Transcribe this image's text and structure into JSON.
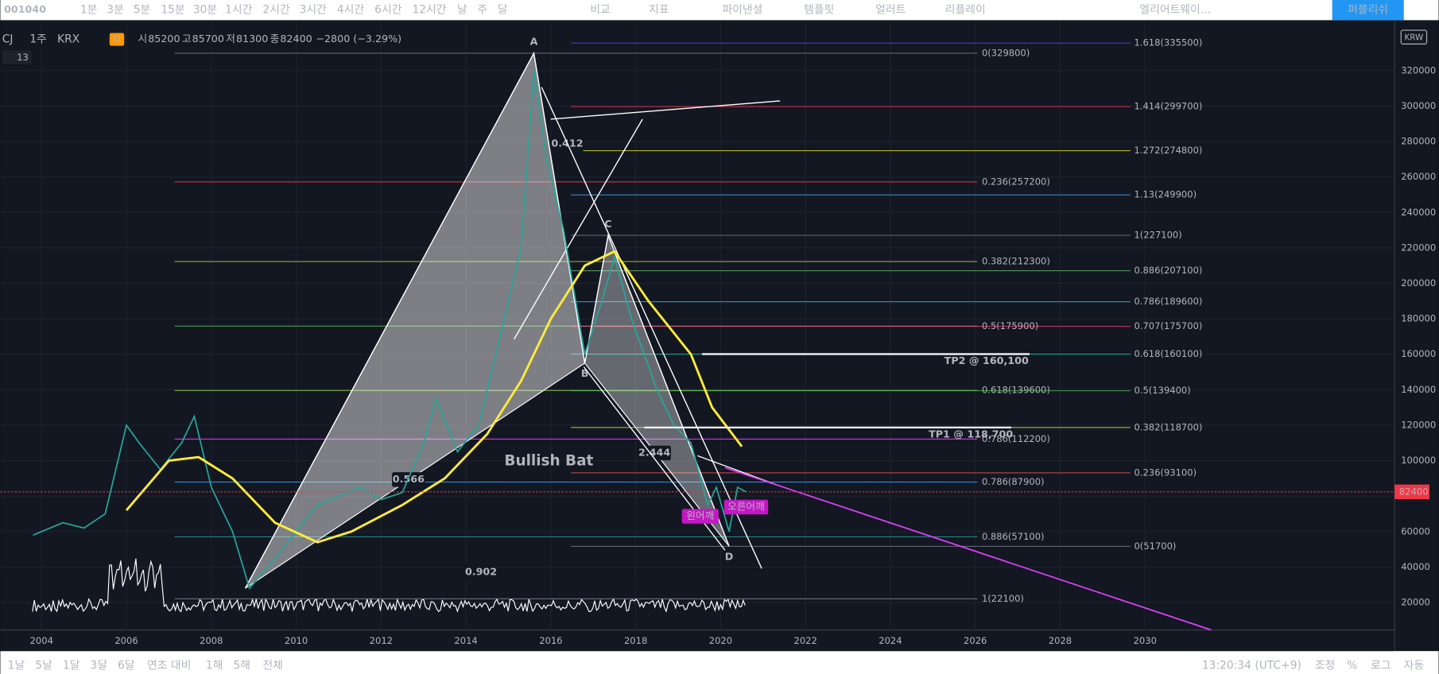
{
  "toolbar": {
    "symbol": "001040",
    "intervals": [
      "1분",
      "3분",
      "5분",
      "15분",
      "30분",
      "1시간",
      "2시간",
      "3시간",
      "4시간",
      "6시간",
      "12시간",
      "날",
      "주",
      "달"
    ],
    "active_interval": "주",
    "buttons": [
      "비교",
      "지표",
      "파이낸셜",
      "템플릿",
      "얼러트",
      "리플레이"
    ],
    "drawing_tool": "엘리어트웨이...",
    "publish": "퍼블리쉬"
  },
  "legend": {
    "symbol": "CJ",
    "interval": "1주",
    "exchange": "KRX",
    "badge": "D",
    "ohlc": [
      [
        "시",
        "85200"
      ],
      [
        "고",
        "85700"
      ],
      [
        "저",
        "81300"
      ],
      [
        "종",
        "82400"
      ]
    ],
    "change": "−2800 (−3.29%)",
    "indicators": "13"
  },
  "chart": {
    "currency": "KRW",
    "last_price": 82400,
    "ylim": [
      4500,
      341700
    ],
    "yticks": [
      320000,
      300000,
      280000,
      260000,
      240000,
      220000,
      200000,
      180000,
      160000,
      140000,
      120000,
      100000,
      80000,
      60000,
      40000,
      20000
    ],
    "xlim": [
      2003.03,
      2035.88
    ],
    "xticks": [
      2004,
      2006,
      2008,
      2010,
      2012,
      2014,
      2016,
      2018,
      2020,
      2022,
      2024,
      2026,
      2028,
      2030
    ],
    "price": {
      "color": "#26a69a",
      "x": [
        2003.8,
        2004.5,
        2005.0,
        2005.5,
        2006.0,
        2006.3,
        2006.8,
        2007.3,
        2007.6,
        2008.0,
        2008.5,
        2008.9,
        2009.5,
        2010.0,
        2010.5,
        2011.0,
        2011.5,
        2012.0,
        2012.5,
        2013.0,
        2013.3,
        2013.8,
        2014.3,
        2014.8,
        2015.3,
        2015.6,
        2015.9,
        2016.3,
        2016.8,
        2017.2,
        2017.5,
        2017.9,
        2018.5,
        2018.9,
        2019.3,
        2019.7,
        2019.9,
        2020.2,
        2020.4,
        2020.6
      ],
      "values": [
        58000,
        65000,
        62000,
        70000,
        120000,
        110000,
        95000,
        110000,
        125000,
        85000,
        60000,
        28000,
        45000,
        60000,
        75000,
        80000,
        85000,
        78000,
        82000,
        110000,
        135000,
        105000,
        120000,
        170000,
        220000,
        320000,
        270000,
        230000,
        160000,
        190000,
        215000,
        180000,
        140000,
        120000,
        110000,
        75000,
        85000,
        60000,
        85000,
        82400
      ]
    },
    "ma": {
      "color": "#ffeb3b",
      "x": [
        2006.0,
        2007.0,
        2007.7,
        2008.5,
        2009.5,
        2010.5,
        2011.3,
        2012.5,
        2013.5,
        2014.5,
        2015.3,
        2016.0,
        2016.8,
        2017.5,
        2018.3,
        2019.3,
        2019.8,
        2020.5
      ],
      "values": [
        72000,
        100000,
        102000,
        90000,
        65000,
        54000,
        60000,
        75000,
        90000,
        115000,
        145000,
        180000,
        210000,
        218000,
        190000,
        160000,
        130000,
        108000
      ]
    },
    "pattern": {
      "name": "Bullish Bat",
      "points": [
        {
          "label": null,
          "x": 2008.8,
          "value": 28000
        },
        {
          "label": "A",
          "x": 2015.6,
          "value": 329800
        },
        {
          "label": "B",
          "x": 2016.8,
          "value": 155000
        },
        {
          "label": "C",
          "x": 2017.35,
          "value": 227000
        },
        {
          "label": "D",
          "x": 2020.2,
          "value": 51700
        }
      ],
      "ratios": [
        "0.412",
        "2.444",
        "0.566",
        "0.902"
      ]
    },
    "targets": [
      {
        "label": "TP2 @ 160,100",
        "value": 160100
      },
      {
        "label": "TP1 @ 118,700",
        "value": 118700
      }
    ],
    "shoulders": [
      "왼어깨",
      "오른어깨"
    ],
    "fib_left": [
      {
        "label": "0(329800)",
        "value": 329800,
        "color": "#787b86"
      },
      {
        "label": "0.236(257200)",
        "value": 257200,
        "color": "#f23645"
      },
      {
        "label": "0.382(212300)",
        "value": 212300,
        "color": "#c0ca33"
      },
      {
        "label": "0.5(175900)",
        "value": 175900,
        "color": "#4caf50"
      },
      {
        "label": "0.618(139600)",
        "value": 139600,
        "color": "#8bc34a"
      },
      {
        "label": "0.786(112200)",
        "value": 112200,
        "color": "#e040fb"
      },
      {
        "label": "0.786(87900)",
        "value": 87900,
        "color": "#42a5f5"
      },
      {
        "label": "0.886(57100)",
        "value": 57100,
        "color": "#26a69a"
      },
      {
        "label": "1(22100)",
        "value": 22100,
        "color": "#787b86"
      }
    ],
    "fib_right": [
      {
        "label": "1.618(335500)",
        "value": 335500,
        "color": "#3f51ff"
      },
      {
        "label": "1.414(299700)",
        "value": 299700,
        "color": "#f23645"
      },
      {
        "label": "1.272(274800)",
        "value": 274800,
        "color": "#c0ca33"
      },
      {
        "label": "1.13(249900)",
        "value": 249900,
        "color": "#42a5f5"
      },
      {
        "label": "1(227100)",
        "value": 227100,
        "color": "#787b86"
      },
      {
        "label": "0.886(207100)",
        "value": 207100,
        "color": "#66bb6a"
      },
      {
        "label": "0.786(189600)",
        "value": 189600,
        "color": "#29b6f6"
      },
      {
        "label": "0.707(175700)",
        "value": 175700,
        "color": "#ec407a"
      },
      {
        "label": "0.618(160100)",
        "value": 160100,
        "color": "#26a69a"
      },
      {
        "label": "0.5(139400)",
        "value": 139400,
        "color": "#4caf50"
      },
      {
        "label": "0.382(118700)",
        "value": 118700,
        "color": "#c0ca33"
      },
      {
        "label": "0.236(93100)",
        "value": 93100,
        "color": "#ef5350"
      },
      {
        "label": "0(51700)",
        "value": 51700,
        "color": "#787b86"
      }
    ]
  },
  "bottom": {
    "ranges": [
      "1날",
      "5날",
      "1달",
      "3달",
      "6달",
      "연초 대비",
      "1해",
      "5해",
      "전체"
    ],
    "clock": "13:20:34 (UTC+9)",
    "options": [
      "조정",
      "%",
      "로그",
      "자동"
    ]
  }
}
